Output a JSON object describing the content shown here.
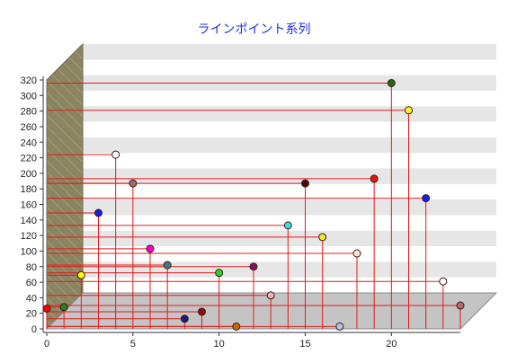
{
  "chart_data": {
    "type": "scatter",
    "title": "ラインポイント系列",
    "xlabel": "",
    "ylabel": "",
    "xlim": [
      0,
      24
    ],
    "ylim": [
      0,
      320
    ],
    "x_ticks": [
      "0",
      "5",
      "10",
      "15",
      "20"
    ],
    "y_ticks": [
      "0",
      "20",
      "40",
      "60",
      "80",
      "100",
      "120",
      "140",
      "160",
      "180",
      "200",
      "220",
      "240",
      "260",
      "280",
      "300",
      "320"
    ],
    "grid": true,
    "style": "3d",
    "drop_line_color": "#e21b1b",
    "points": [
      {
        "x": 0,
        "y": 26,
        "color": "#ff0000"
      },
      {
        "x": 1,
        "y": 28,
        "color": "#2e7d1a"
      },
      {
        "x": 2,
        "y": 69,
        "color": "#ffff00"
      },
      {
        "x": 3,
        "y": 149,
        "color": "#1a1aee"
      },
      {
        "x": 4,
        "y": 224,
        "color": "#ffffff"
      },
      {
        "x": 5,
        "y": 187,
        "color": "#9e6a6a"
      },
      {
        "x": 6,
        "y": 103,
        "color": "#ff00cc"
      },
      {
        "x": 7,
        "y": 82,
        "color": "#3f7a78"
      },
      {
        "x": 8,
        "y": 13,
        "color": "#1a1a7e"
      },
      {
        "x": 9,
        "y": 22,
        "color": "#8a0e0e"
      },
      {
        "x": 10,
        "y": 72,
        "color": "#22dd22"
      },
      {
        "x": 11,
        "y": 3,
        "color": "#c06a00"
      },
      {
        "x": 12,
        "y": 80,
        "color": "#8a1060"
      },
      {
        "x": 13,
        "y": 43,
        "color": "#e2b4b4"
      },
      {
        "x": 14,
        "y": 133,
        "color": "#36e0e0"
      },
      {
        "x": 15,
        "y": 187,
        "color": "#4a0a0a"
      },
      {
        "x": 16,
        "y": 118,
        "color": "#e8e830"
      },
      {
        "x": 17,
        "y": 3,
        "color": "#b4c4e4"
      },
      {
        "x": 18,
        "y": 97,
        "color": "#ffe8d8"
      },
      {
        "x": 19,
        "y": 193,
        "color": "#ee1111"
      },
      {
        "x": 20,
        "y": 316,
        "color": "#1e6a0e"
      },
      {
        "x": 21,
        "y": 281,
        "color": "#ffff22"
      },
      {
        "x": 22,
        "y": 168,
        "color": "#1a1aee"
      },
      {
        "x": 23,
        "y": 61,
        "color": "#ffffff"
      },
      {
        "x": 24,
        "y": 30,
        "color": "#b06a6a"
      }
    ]
  }
}
